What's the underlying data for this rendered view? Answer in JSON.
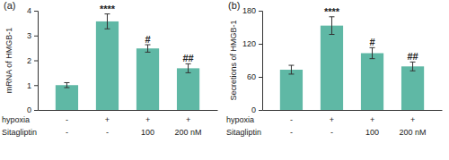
{
  "chart_data": [
    {
      "type": "bar",
      "title": "(a)",
      "y_label": "mRNA of HMGB-1",
      "categories": [
        null,
        null,
        null,
        null
      ],
      "values": [
        1.0,
        3.57,
        2.48,
        1.68
      ],
      "errors": [
        0.1,
        0.3,
        0.15,
        0.18
      ],
      "annotations": [
        null,
        "****",
        "#",
        "##"
      ],
      "conditions": [
        {
          "label": "hypoxia",
          "values": [
            "-",
            "+",
            "+",
            "+"
          ]
        },
        {
          "label": "Sitagliptin",
          "values": [
            "-",
            "-",
            "100",
            "200 nM"
          ]
        }
      ],
      "color": "#5fb8a5",
      "ylim": [
        0,
        4
      ],
      "yticks": [
        0,
        1,
        2,
        3,
        4
      ],
      "grid": false
    },
    {
      "type": "bar",
      "title": "(b)",
      "y_label": "Secretions of HMGB-1",
      "categories": [
        null,
        null,
        null,
        null
      ],
      "values": [
        73,
        153,
        103,
        79
      ],
      "errors": [
        8,
        16,
        10,
        8
      ],
      "annotations": [
        null,
        "****",
        "#",
        "##"
      ],
      "conditions": [
        {
          "label": "hypoxia",
          "values": [
            "-",
            "+",
            "+",
            "+"
          ]
        },
        {
          "label": "Sitagliptin",
          "values": [
            "-",
            "-",
            "100",
            "200 nM"
          ]
        }
      ],
      "color": "#5fb8a5",
      "ylim": [
        0,
        180
      ],
      "yticks": [
        0,
        60,
        120,
        180
      ],
      "grid": false
    }
  ]
}
